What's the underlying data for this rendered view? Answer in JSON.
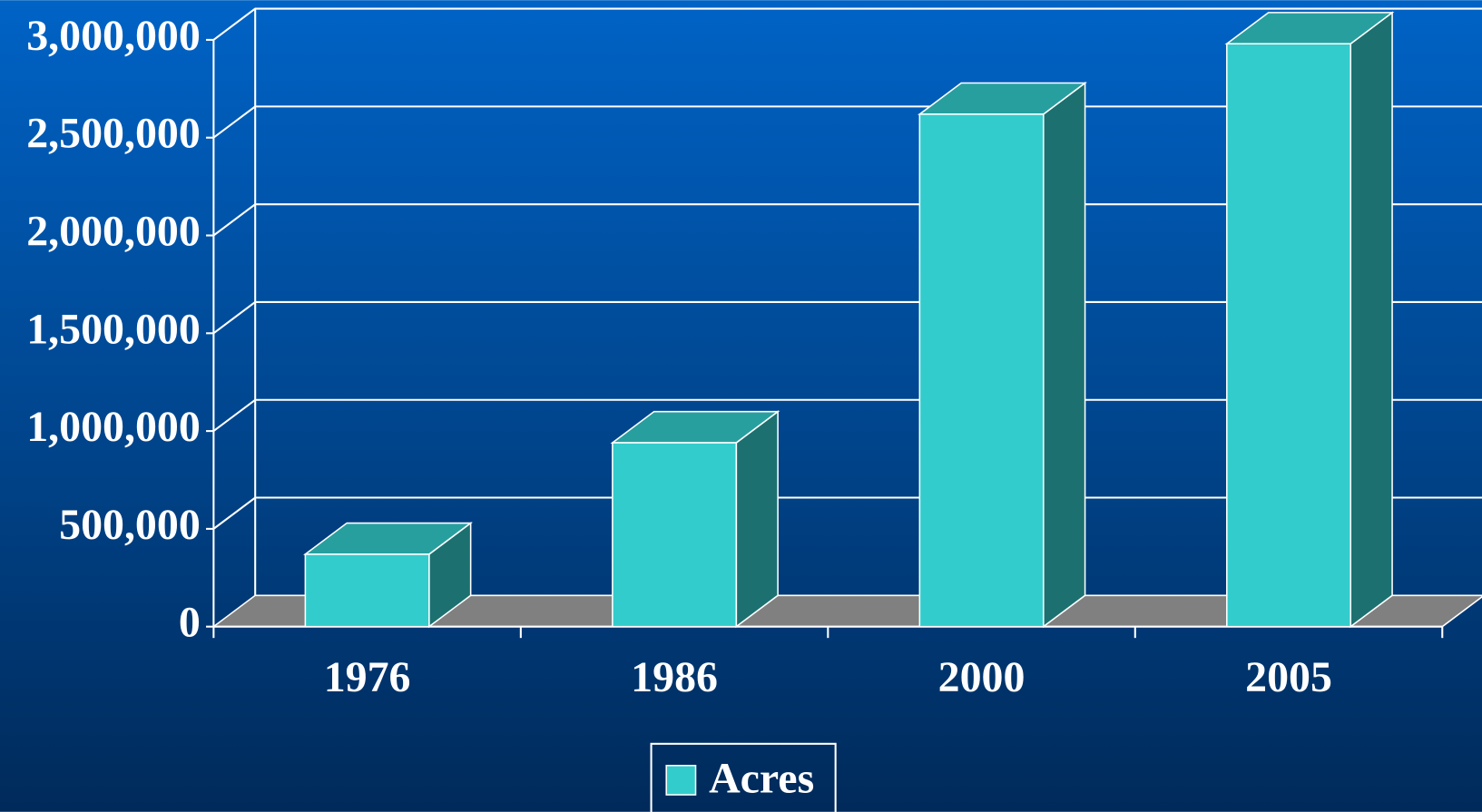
{
  "chart_data": {
    "type": "bar3d",
    "categories": [
      "1976",
      "1986",
      "2000",
      "2005"
    ],
    "series": [
      {
        "name": "Acres",
        "color": "#33cccc",
        "values": [
          370000,
          940000,
          2620000,
          2980000
        ]
      }
    ],
    "ylim": [
      0,
      3000000
    ],
    "yticks": [
      {
        "value": 0,
        "label": "0"
      },
      {
        "value": 500000,
        "label": "500,000"
      },
      {
        "value": 1000000,
        "label": "1,000,000"
      },
      {
        "value": 1500000,
        "label": "1,500,000"
      },
      {
        "value": 2000000,
        "label": "2,000,000"
      },
      {
        "value": 2500000,
        "label": "2,500,000"
      },
      {
        "value": 3000000,
        "label": "3,000,000"
      }
    ],
    "grid": true,
    "legend": "bottom"
  }
}
